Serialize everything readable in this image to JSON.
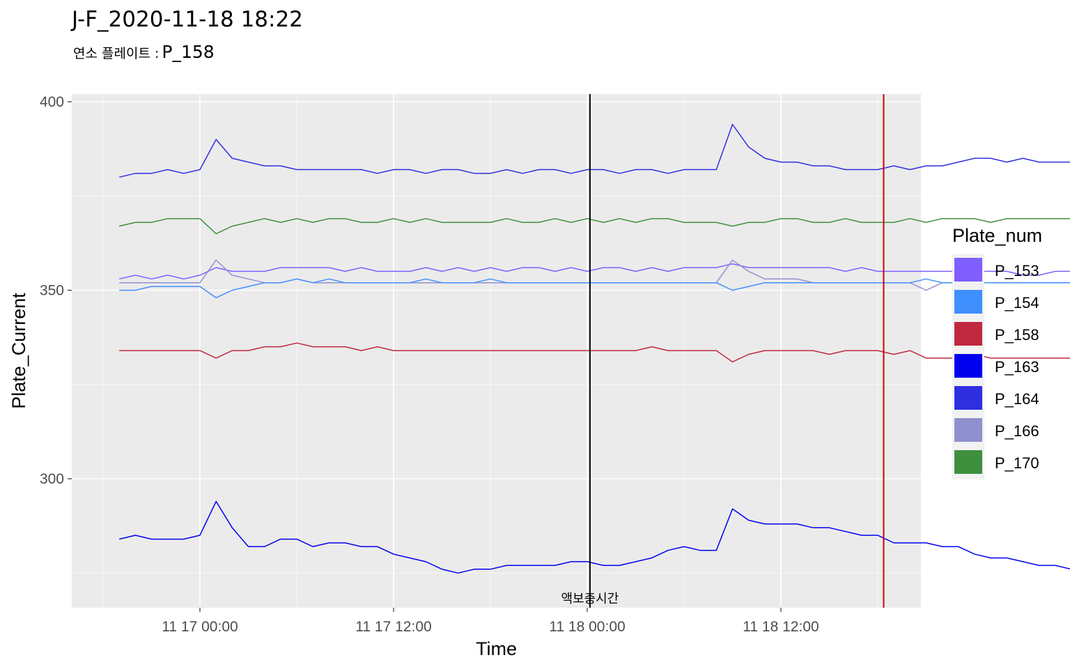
{
  "title": "J-F_2020-11-18 18:22",
  "subtitle": {
    "label": "연소 플레이트 :",
    "value": "P_158"
  },
  "chart_data": {
    "type": "line",
    "xlabel": "Time",
    "ylabel": "Plate_Current",
    "xlim": [
      "2020-11-16 19:00",
      "2020-11-18 21:30"
    ],
    "ylim": [
      265,
      400
    ],
    "x_ticks": [
      {
        "value": "2020-11-17 00:00",
        "label": "11 17 00:00"
      },
      {
        "value": "2020-11-17 12:00",
        "label": "11 17 12:00"
      },
      {
        "value": "2020-11-18 00:00",
        "label": "11 18 00:00"
      },
      {
        "value": "2020-11-18 12:00",
        "label": "11 18 12:00"
      }
    ],
    "y_ticks": [
      300,
      350,
      400
    ],
    "grid": true,
    "panel_background": "#ebebeb",
    "legend": {
      "title": "Plate_num",
      "position": "right",
      "entries": [
        {
          "name": "P_153",
          "color": "#7f5fff"
        },
        {
          "name": "P_154",
          "color": "#3f8fff"
        },
        {
          "name": "P_158",
          "color": "#c0283f"
        },
        {
          "name": "P_163",
          "color": "#0000ee"
        },
        {
          "name": "P_164",
          "color": "#2f2fe0"
        },
        {
          "name": "P_166",
          "color": "#9090cf"
        },
        {
          "name": "P_170",
          "color": "#3f8f3f"
        }
      ]
    },
    "start": "2020-11-16 19:00",
    "step_hours": 1,
    "series": [
      {
        "name": "P_164",
        "color": "#2f2fe0",
        "values": [
          380,
          381,
          381,
          382,
          381,
          382,
          390,
          385,
          384,
          383,
          383,
          382,
          382,
          382,
          382,
          382,
          381,
          382,
          382,
          381,
          382,
          382,
          381,
          381,
          382,
          381,
          382,
          382,
          381,
          382,
          382,
          381,
          382,
          382,
          381,
          382,
          382,
          382,
          394,
          388,
          385,
          384,
          384,
          383,
          383,
          382,
          382,
          382,
          383,
          382,
          383,
          383,
          384,
          385,
          385,
          384,
          385,
          384,
          384,
          384,
          383
        ]
      },
      {
        "name": "P_170",
        "color": "#3f8f3f",
        "values": [
          367,
          368,
          368,
          369,
          369,
          369,
          365,
          367,
          368,
          369,
          368,
          369,
          368,
          369,
          369,
          368,
          368,
          369,
          368,
          369,
          368,
          368,
          368,
          368,
          369,
          368,
          368,
          369,
          368,
          369,
          368,
          369,
          368,
          369,
          369,
          368,
          368,
          368,
          367,
          368,
          368,
          369,
          369,
          368,
          368,
          369,
          368,
          368,
          368,
          369,
          368,
          369,
          369,
          369,
          368,
          369,
          369,
          369,
          369,
          369,
          369
        ]
      },
      {
        "name": "P_153",
        "color": "#7f5fff",
        "values": [
          353,
          354,
          353,
          354,
          353,
          354,
          356,
          355,
          355,
          355,
          356,
          356,
          356,
          356,
          355,
          356,
          355,
          355,
          355,
          356,
          355,
          356,
          355,
          356,
          355,
          356,
          356,
          355,
          356,
          355,
          356,
          356,
          355,
          356,
          355,
          356,
          356,
          356,
          357,
          356,
          356,
          356,
          356,
          356,
          356,
          355,
          356,
          355,
          355,
          355,
          355,
          355,
          355,
          355,
          355,
          355,
          354,
          354,
          355,
          355,
          354
        ]
      },
      {
        "name": "P_166",
        "color": "#9090cf",
        "values": [
          352,
          352,
          352,
          352,
          352,
          352,
          358,
          354,
          353,
          352,
          352,
          353,
          352,
          352,
          352,
          352,
          352,
          352,
          352,
          352,
          352,
          352,
          352,
          352,
          352,
          352,
          352,
          352,
          352,
          352,
          352,
          352,
          352,
          352,
          352,
          352,
          352,
          352,
          358,
          355,
          353,
          353,
          353,
          352,
          352,
          352,
          352,
          352,
          352,
          352,
          350,
          352,
          352,
          352,
          352,
          352,
          352,
          352,
          352,
          352,
          352
        ]
      },
      {
        "name": "P_154",
        "color": "#3f8fff",
        "values": [
          350,
          350,
          351,
          351,
          351,
          351,
          348,
          350,
          351,
          352,
          352,
          353,
          352,
          353,
          352,
          352,
          352,
          352,
          352,
          353,
          352,
          352,
          352,
          353,
          352,
          352,
          352,
          352,
          352,
          352,
          352,
          352,
          352,
          352,
          352,
          352,
          352,
          352,
          350,
          351,
          352,
          352,
          352,
          352,
          352,
          352,
          352,
          352,
          352,
          352,
          353,
          352,
          352,
          352,
          352,
          352,
          352,
          352,
          352,
          352,
          353
        ]
      },
      {
        "name": "P_158",
        "color": "#c0283f",
        "values": [
          334,
          334,
          334,
          334,
          334,
          334,
          332,
          334,
          334,
          335,
          335,
          336,
          335,
          335,
          335,
          334,
          335,
          334,
          334,
          334,
          334,
          334,
          334,
          334,
          334,
          334,
          334,
          334,
          334,
          334,
          334,
          334,
          334,
          335,
          334,
          334,
          334,
          334,
          331,
          333,
          334,
          334,
          334,
          334,
          333,
          334,
          334,
          334,
          333,
          334,
          332,
          332,
          332,
          333,
          332,
          332,
          332,
          332,
          332,
          332,
          332
        ]
      },
      {
        "name": "P_163",
        "color": "#0000ee",
        "values": [
          284,
          285,
          284,
          284,
          284,
          285,
          294,
          287,
          282,
          282,
          284,
          284,
          282,
          283,
          283,
          282,
          282,
          280,
          279,
          278,
          276,
          275,
          276,
          276,
          277,
          277,
          277,
          277,
          278,
          278,
          277,
          277,
          278,
          279,
          281,
          282,
          281,
          281,
          292,
          289,
          288,
          288,
          288,
          287,
          287,
          286,
          285,
          285,
          283,
          283,
          283,
          282,
          282,
          280,
          279,
          279,
          278,
          277,
          277,
          276,
          276
        ]
      }
    ],
    "vertical_lines": [
      {
        "x": "2020-11-18 00:10",
        "color": "#000000"
      },
      {
        "x": "2020-11-18 18:22",
        "color": "#cc0000"
      }
    ],
    "annotations": [
      {
        "text": "액보충시간",
        "x": "2020-11-18 00:10",
        "y": 268
      }
    ]
  }
}
